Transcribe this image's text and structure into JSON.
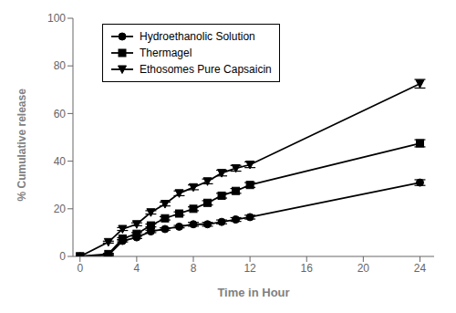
{
  "chart_data": {
    "type": "line",
    "title": "",
    "x_label": "Time in Hour",
    "y_label": "% Cumulative release",
    "xlim": [
      -0.5,
      25
    ],
    "ylim": [
      0,
      100
    ],
    "xticks": [
      0,
      4,
      8,
      12,
      16,
      20,
      24
    ],
    "yticks": [
      0,
      20,
      40,
      60,
      80,
      100
    ],
    "x": [
      0,
      2,
      3,
      4,
      5,
      6,
      7,
      8,
      9,
      10,
      11,
      12,
      24
    ],
    "series": [
      {
        "name": "Hydroethanolic Solution",
        "color": "#000000",
        "marker": "circle",
        "values": [
          0,
          0.5,
          6.5,
          8.0,
          10.5,
          11.5,
          12.5,
          13.5,
          13.5,
          14.5,
          15.5,
          16.5,
          31.0
        ],
        "errors": [
          0,
          0.3,
          0.4,
          0.5,
          0.5,
          0.5,
          0.5,
          0.8,
          0.8,
          0.8,
          0.8,
          0.8,
          1.2
        ]
      },
      {
        "name": "Thermagel",
        "color": "#000000",
        "marker": "square",
        "values": [
          0,
          1.0,
          7.5,
          9.5,
          13.0,
          16.0,
          18.0,
          20.0,
          22.5,
          25.5,
          27.5,
          30.0,
          47.5
        ],
        "errors": [
          0,
          0.3,
          0.4,
          0.5,
          0.6,
          0.7,
          0.7,
          0.8,
          0.9,
          1.0,
          1.0,
          1.0,
          1.5
        ]
      },
      {
        "name": "Ethosomes Pure Capsaicin",
        "color": "#000000",
        "marker": "triangle_down",
        "values": [
          0,
          6.0,
          11.5,
          13.5,
          18.5,
          22.0,
          26.5,
          29.0,
          31.5,
          35.0,
          37.0,
          38.5,
          72.5
        ],
        "errors": [
          0,
          0.4,
          0.6,
          0.6,
          0.7,
          0.8,
          1.0,
          1.0,
          1.0,
          1.2,
          1.2,
          1.2,
          1.8
        ]
      }
    ],
    "legend": "upper left",
    "grid": false
  }
}
